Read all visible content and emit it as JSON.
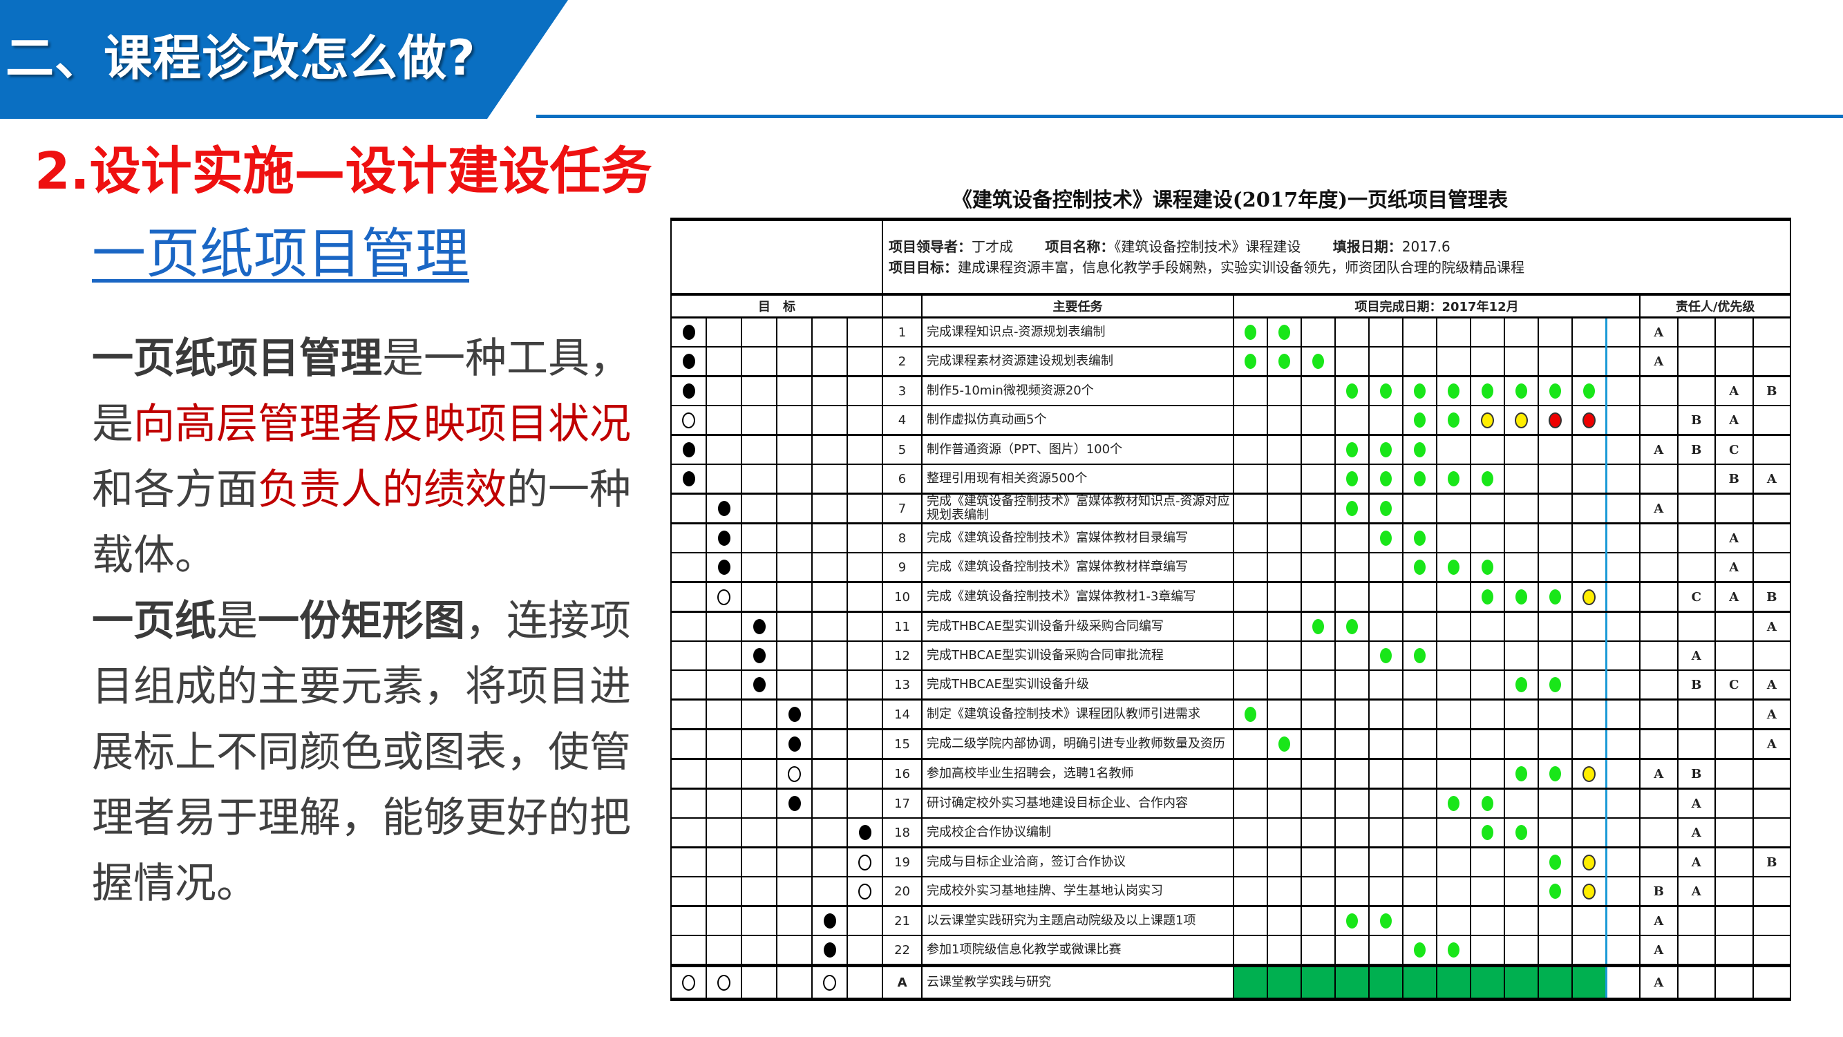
{
  "header": {
    "title": "二、课程诊改怎么做?",
    "subtitle": "2.设计实施—设计建设任务",
    "section_link": "一页纸项目管理",
    "accent_color": "#0a6fc2",
    "subtitle_color": "#ee1111"
  },
  "body": {
    "paragraphs": [
      [
        {
          "text": "一页纸项目管理",
          "style": "bold"
        },
        {
          "text": "是一种工具，是",
          "style": "normal"
        },
        {
          "text": "向高层管理者反映项目状况",
          "style": "red"
        },
        {
          "text": "和各方面",
          "style": "normal"
        },
        {
          "text": "负责人的绩效",
          "style": "red"
        },
        {
          "text": "的一种载体。",
          "style": "normal"
        }
      ],
      [
        {
          "text": "一页纸",
          "style": "bold"
        },
        {
          "text": "是",
          "style": "normal"
        },
        {
          "text": "一份矩形图",
          "style": "bold"
        },
        {
          "text": "，连接项目组成的主要元素，将项目进展标上不同颜色或图表，使管理者易于理解，能够更好的把握情况。",
          "style": "normal"
        }
      ]
    ]
  },
  "table": {
    "title": "《建筑设备控制技术》课程建设(2017年度)一页纸项目管理表",
    "info": {
      "leader_label": "项目领导者：",
      "leader": "丁才成",
      "name_label": "项目名称：",
      "name": "《建筑设备控制技术》课程建设",
      "date_label": "填报日期：",
      "date": "2017.6",
      "goal_label": "项目目标：",
      "goal": "建成课程资源丰富，信息化教学手段娴熟，实验实训设备领先，师资团队合理的院级精品课程"
    },
    "headers": {
      "goals": "目　标",
      "tasks": "主要任务",
      "timeline": "项目完成日期：2017年12月",
      "responsible": "责任人/优先级"
    },
    "status_colors": {
      "g": "#19e619",
      "y": "#ffee00",
      "r": "#ee0000",
      "fill": "#00b050",
      "today_line": "#1a9ad6"
    },
    "rows": [
      {
        "no": "1",
        "task": "完成课程知识点-资源规划表编制",
        "goals": [
          "filled",
          "",
          "",
          "",
          "",
          ""
        ],
        "timeline": [
          "g",
          "g",
          "",
          "",
          "",
          "",
          "",
          "",
          "",
          "",
          "",
          ""
        ],
        "resp": [
          "A",
          "",
          "",
          ""
        ]
      },
      {
        "no": "2",
        "task": "完成课程素材资源建设规划表编制",
        "goals": [
          "filled",
          "",
          "",
          "",
          "",
          ""
        ],
        "timeline": [
          "g",
          "g",
          "g",
          "",
          "",
          "",
          "",
          "",
          "",
          "",
          "",
          ""
        ],
        "resp": [
          "A",
          "",
          "",
          ""
        ]
      },
      {
        "no": "3",
        "task": "制作5-10min微视频资源20个",
        "goals": [
          "filled",
          "",
          "",
          "",
          "",
          ""
        ],
        "timeline": [
          "",
          "",
          "",
          "g",
          "g",
          "g",
          "g",
          "g",
          "g",
          "g",
          "g",
          ""
        ],
        "resp": [
          "",
          "",
          "A",
          "B"
        ]
      },
      {
        "no": "4",
        "task": "制作虚拟仿真动画5个",
        "goals": [
          "hollow",
          "",
          "",
          "",
          "",
          ""
        ],
        "timeline": [
          "",
          "",
          "",
          "",
          "",
          "g",
          "g",
          "y",
          "y",
          "r",
          "r",
          ""
        ],
        "resp": [
          "",
          "B",
          "A",
          ""
        ]
      },
      {
        "no": "5",
        "task": "制作普通资源（PPT、图片）100个",
        "goals": [
          "filled",
          "",
          "",
          "",
          "",
          ""
        ],
        "timeline": [
          "",
          "",
          "",
          "g",
          "g",
          "g",
          "",
          "",
          "",
          "",
          "",
          ""
        ],
        "resp": [
          "A",
          "B",
          "C",
          ""
        ]
      },
      {
        "no": "6",
        "task": "整理引用现有相关资源500个",
        "goals": [
          "filled",
          "",
          "",
          "",
          "",
          ""
        ],
        "timeline": [
          "",
          "",
          "",
          "g",
          "g",
          "g",
          "g",
          "g",
          "",
          "",
          "",
          ""
        ],
        "resp": [
          "",
          "",
          "B",
          "A"
        ]
      },
      {
        "no": "7",
        "task": "完成《建筑设备控制技术》富媒体教材知识点-资源对应规划表编制",
        "goals": [
          "",
          "filled",
          "",
          "",
          "",
          ""
        ],
        "timeline": [
          "",
          "",
          "",
          "g",
          "g",
          "",
          "",
          "",
          "",
          "",
          "",
          ""
        ],
        "resp": [
          "A",
          "",
          "",
          ""
        ]
      },
      {
        "no": "8",
        "task": "完成《建筑设备控制技术》富媒体教材目录编写",
        "goals": [
          "",
          "filled",
          "",
          "",
          "",
          ""
        ],
        "timeline": [
          "",
          "",
          "",
          "",
          "g",
          "g",
          "",
          "",
          "",
          "",
          "",
          ""
        ],
        "resp": [
          "",
          "",
          "A",
          ""
        ]
      },
      {
        "no": "9",
        "task": "完成《建筑设备控制技术》富媒体教材样章编写",
        "goals": [
          "",
          "filled",
          "",
          "",
          "",
          ""
        ],
        "timeline": [
          "",
          "",
          "",
          "",
          "",
          "g",
          "g",
          "g",
          "",
          "",
          "",
          ""
        ],
        "resp": [
          "",
          "",
          "A",
          ""
        ]
      },
      {
        "no": "10",
        "task": "完成《建筑设备控制技术》富媒体教材1-3章编写",
        "goals": [
          "",
          "hollow",
          "",
          "",
          "",
          ""
        ],
        "timeline": [
          "",
          "",
          "",
          "",
          "",
          "",
          "",
          "g",
          "g",
          "g",
          "y",
          ""
        ],
        "resp": [
          "",
          "C",
          "A",
          "B"
        ]
      },
      {
        "no": "11",
        "task": "完成THBCAE型实训设备升级采购合同编写",
        "goals": [
          "",
          "",
          "filled",
          "",
          "",
          ""
        ],
        "timeline": [
          "",
          "",
          "g",
          "g",
          "",
          "",
          "",
          "",
          "",
          "",
          "",
          ""
        ],
        "resp": [
          "",
          "",
          "",
          "A"
        ]
      },
      {
        "no": "12",
        "task": "完成THBCAE型实训设备采购合同审批流程",
        "goals": [
          "",
          "",
          "filled",
          "",
          "",
          ""
        ],
        "timeline": [
          "",
          "",
          "",
          "",
          "g",
          "g",
          "",
          "",
          "",
          "",
          "",
          ""
        ],
        "resp": [
          "",
          "A",
          "",
          ""
        ]
      },
      {
        "no": "13",
        "task": "完成THBCAE型实训设备升级",
        "goals": [
          "",
          "",
          "filled",
          "",
          "",
          ""
        ],
        "timeline": [
          "",
          "",
          "",
          "",
          "",
          "",
          "",
          "",
          "g",
          "g",
          "",
          ""
        ],
        "resp": [
          "",
          "B",
          "C",
          "A"
        ]
      },
      {
        "no": "14",
        "task": "制定《建筑设备控制技术》课程团队教师引进需求",
        "goals": [
          "",
          "",
          "",
          "filled",
          "",
          ""
        ],
        "timeline": [
          "g",
          "",
          "",
          "",
          "",
          "",
          "",
          "",
          "",
          "",
          "",
          ""
        ],
        "resp": [
          "",
          "",
          "",
          "A"
        ]
      },
      {
        "no": "15",
        "task": "完成二级学院内部协调，明确引进专业教师数量及资历",
        "goals": [
          "",
          "",
          "",
          "filled",
          "",
          ""
        ],
        "timeline": [
          "",
          "g",
          "",
          "",
          "",
          "",
          "",
          "",
          "",
          "",
          "",
          ""
        ],
        "resp": [
          "",
          "",
          "",
          "A"
        ]
      },
      {
        "no": "16",
        "task": "参加高校毕业生招聘会，选聘1名教师",
        "goals": [
          "",
          "",
          "",
          "hollow",
          "",
          ""
        ],
        "timeline": [
          "",
          "",
          "",
          "",
          "",
          "",
          "",
          "",
          "g",
          "g",
          "y",
          ""
        ],
        "resp": [
          "A",
          "B",
          "",
          ""
        ]
      },
      {
        "no": "17",
        "task": "研讨确定校外实习基地建设目标企业、合作内容",
        "goals": [
          "",
          "",
          "",
          "filled",
          "",
          ""
        ],
        "timeline": [
          "",
          "",
          "",
          "",
          "",
          "",
          "g",
          "g",
          "",
          "",
          "",
          ""
        ],
        "resp": [
          "",
          "A",
          "",
          ""
        ]
      },
      {
        "no": "18",
        "task": "完成校企合作协议编制",
        "goals": [
          "",
          "",
          "",
          "",
          "",
          "filled"
        ],
        "timeline": [
          "",
          "",
          "",
          "",
          "",
          "",
          "",
          "g",
          "g",
          "",
          "",
          ""
        ],
        "resp": [
          "",
          "A",
          "",
          ""
        ]
      },
      {
        "no": "19",
        "task": "完成与目标企业洽商，签订合作协议",
        "goals": [
          "",
          "",
          "",
          "",
          "",
          "hollow"
        ],
        "timeline": [
          "",
          "",
          "",
          "",
          "",
          "",
          "",
          "",
          "",
          "g",
          "y",
          ""
        ],
        "resp": [
          "",
          "A",
          "",
          "B"
        ]
      },
      {
        "no": "20",
        "task": "完成校外实习基地挂牌、学生基地认岗实习",
        "goals": [
          "",
          "",
          "",
          "",
          "",
          "hollow"
        ],
        "timeline": [
          "",
          "",
          "",
          "",
          "",
          "",
          "",
          "",
          "",
          "g",
          "y",
          ""
        ],
        "resp": [
          "B",
          "A",
          "",
          ""
        ]
      },
      {
        "no": "21",
        "task": "以云课堂实践研究为主题启动院级及以上课题1项",
        "goals": [
          "",
          "",
          "",
          "",
          "filled",
          ""
        ],
        "timeline": [
          "",
          "",
          "",
          "g",
          "g",
          "",
          "",
          "",
          "",
          "",
          "",
          ""
        ],
        "resp": [
          "A",
          "",
          "",
          ""
        ]
      },
      {
        "no": "22",
        "task": "参加1项院级信息化教学或微课比赛",
        "goals": [
          "",
          "",
          "",
          "",
          "filled",
          ""
        ],
        "timeline": [
          "",
          "",
          "",
          "",
          "",
          "g",
          "g",
          "",
          "",
          "",
          "",
          ""
        ],
        "resp": [
          "A",
          "",
          "",
          ""
        ]
      }
    ],
    "summary_row": {
      "no": "A",
      "task": "云课堂教学实践与研究",
      "goals": [
        "hollow",
        "hollow",
        "",
        "",
        "hollow",
        ""
      ],
      "timeline": [
        "fill",
        "fill",
        "fill",
        "fill",
        "fill",
        "fill",
        "fill",
        "fill",
        "fill",
        "fill",
        "fill",
        ""
      ],
      "resp": [
        "A",
        "",
        "",
        ""
      ]
    }
  }
}
